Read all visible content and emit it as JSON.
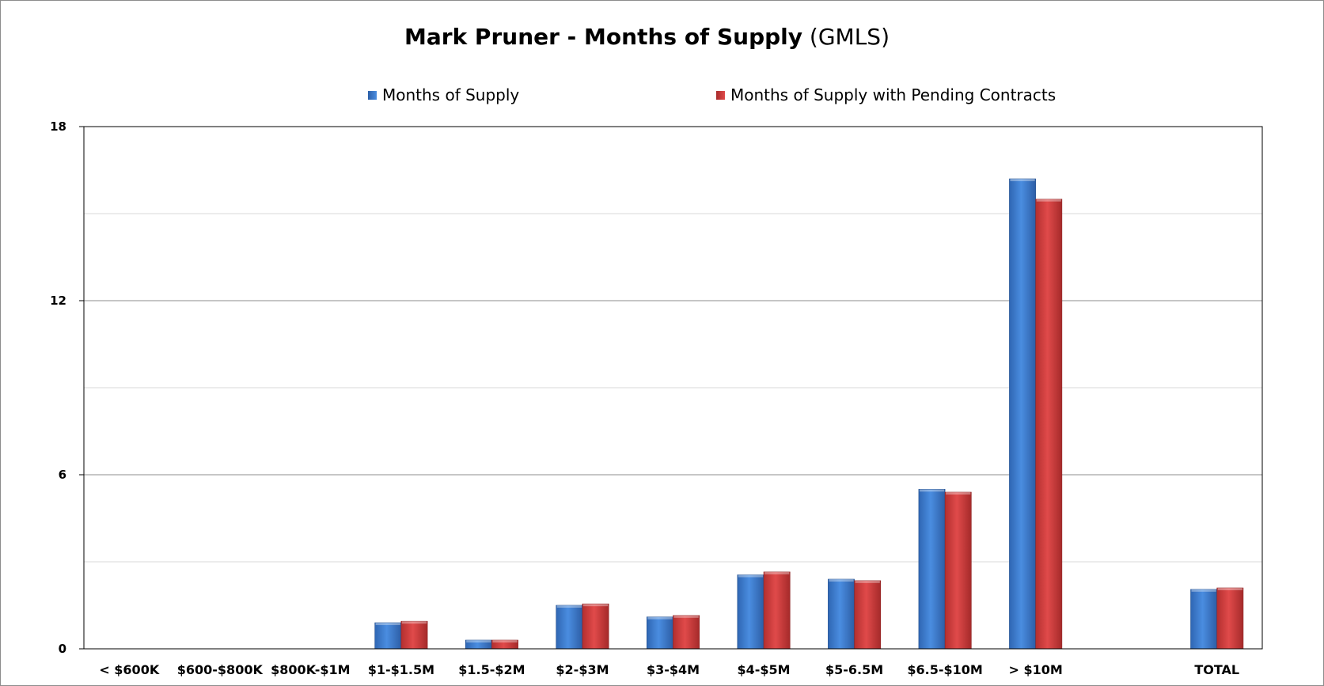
{
  "chart_data": {
    "type": "bar",
    "title": "Mark Pruner - Months of Supply",
    "subtitle": "(GMLS)",
    "xlabel": "",
    "ylabel": "",
    "ylim": [
      0,
      18
    ],
    "yticks": [
      "0",
      "6",
      "12",
      "18"
    ],
    "grid": true,
    "legend_position": "top",
    "categories": [
      "< $600K",
      "$600-$800K",
      "$800K-$1M",
      "$1-$1.5M",
      "$1.5-$2M",
      "$2-$3M",
      "$3-$4M",
      "$4-$5M",
      "$5-6.5M",
      "$6.5-$10M",
      "> $10M",
      "",
      "TOTAL"
    ],
    "series": [
      {
        "name": "Months of Supply",
        "color": "#3a7bd5",
        "values": [
          0,
          0,
          0,
          0.9,
          0.3,
          1.5,
          1.1,
          2.55,
          2.4,
          5.5,
          16.2,
          null,
          2.05
        ]
      },
      {
        "name": "Months of Supply with Pending Contracts",
        "color": "#d63a3a",
        "values": [
          0,
          0,
          0,
          0.95,
          0.3,
          1.55,
          1.15,
          2.65,
          2.35,
          5.4,
          15.5,
          null,
          2.1
        ]
      }
    ]
  }
}
